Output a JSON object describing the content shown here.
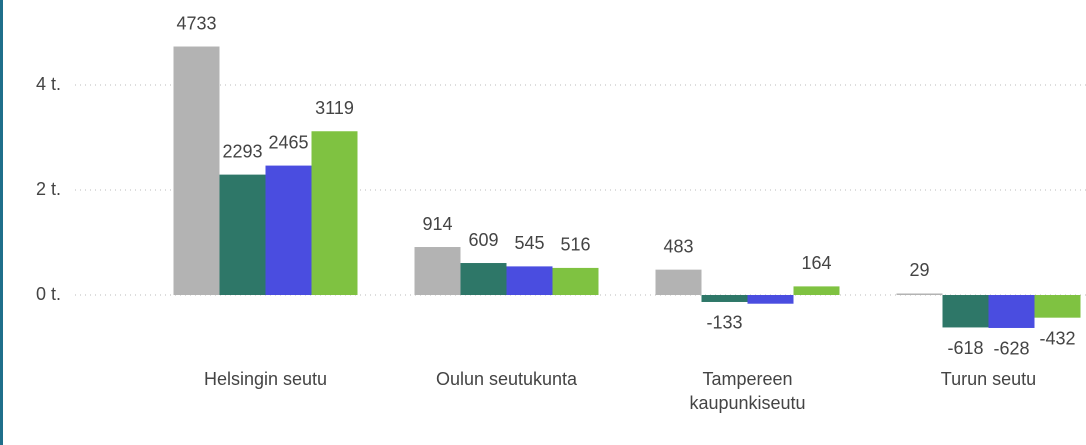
{
  "chart_data": {
    "type": "bar",
    "categories": [
      "Helsingin seutu",
      "Oulun seutukunta",
      "Tampereen kaupunkiseutu",
      "Turun seutu"
    ],
    "series": [
      {
        "color": "#b3b3b3",
        "values": [
          4733,
          914,
          483,
          29
        ]
      },
      {
        "color": "#2e7768",
        "values": [
          2293,
          609,
          -133,
          -618
        ]
      },
      {
        "color": "#4a4de0",
        "values": [
          2465,
          545,
          -166,
          -628
        ]
      },
      {
        "color": "#7fc241",
        "values": [
          3119,
          516,
          164,
          -432
        ]
      }
    ],
    "value_labels": [
      [
        "4733",
        "914",
        "483",
        "29"
      ],
      [
        "2293",
        "609",
        "-133",
        "-618"
      ],
      [
        "2465",
        "545",
        null,
        "-628"
      ],
      [
        "3119",
        "516",
        "164",
        "-432"
      ]
    ],
    "ylim": [
      -1600,
      5600
    ],
    "yticks": [
      {
        "value": 0,
        "label": "0 t."
      },
      {
        "value": 2000,
        "label": "2 t."
      },
      {
        "value": 4000,
        "label": "4 t."
      }
    ],
    "grid": true
  }
}
